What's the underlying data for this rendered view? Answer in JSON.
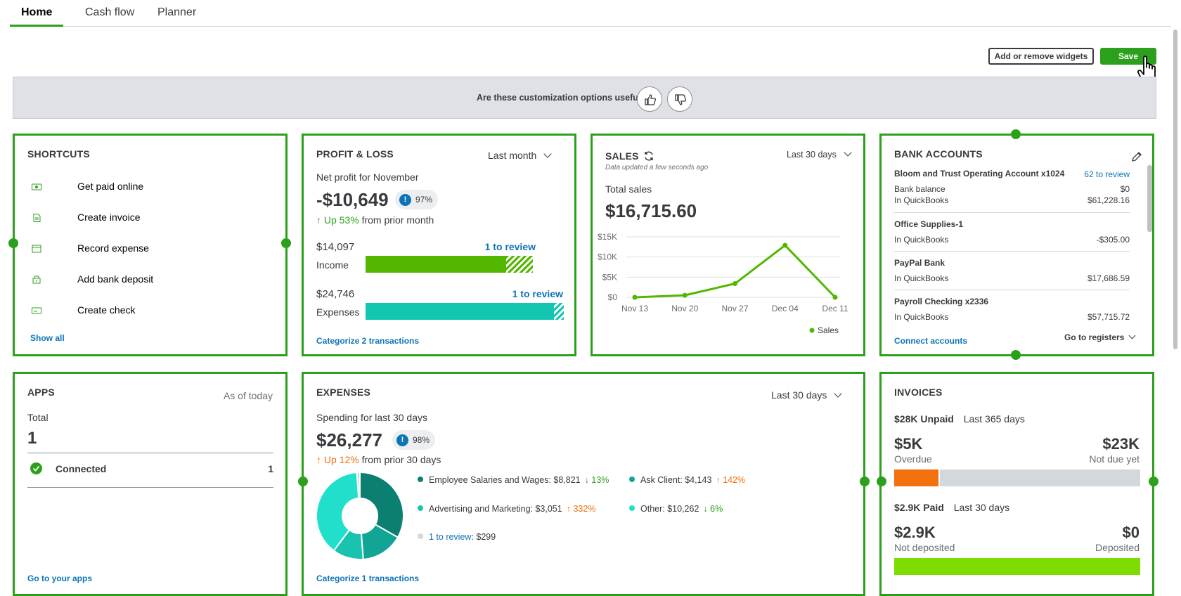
{
  "tabs": [
    {
      "label": "Home",
      "active": true
    },
    {
      "label": "Cash flow",
      "active": false
    },
    {
      "label": "Planner",
      "active": false
    }
  ],
  "actions": {
    "widgets_label": "Add or remove widgets",
    "save_label": "Save"
  },
  "feedback": {
    "question": "Are these customization options useful?",
    "thumbs_up_icon": "thumbs-up-icon",
    "thumbs_down_icon": "thumbs-down-icon"
  },
  "colors": {
    "accent": "#2ca01c",
    "link": "#0d74b7",
    "income": "#53b700",
    "expenses": "#13c6b2",
    "overdue": "#f2700d",
    "deposited": "#7fdc00"
  },
  "shortcuts": {
    "title": "SHORTCUTS",
    "items": [
      {
        "label": "Get paid online",
        "icon": "money-icon"
      },
      {
        "label": "Create invoice",
        "icon": "document-icon"
      },
      {
        "label": "Record expense",
        "icon": "receipt-icon"
      },
      {
        "label": "Add bank deposit",
        "icon": "bank-deposit-icon"
      },
      {
        "label": "Create check",
        "icon": "check-icon"
      }
    ],
    "show_all": "Show all"
  },
  "profit_loss": {
    "title": "PROFIT & LOSS",
    "period": "Last month",
    "subtitle": "Net profit for November",
    "net_profit": "-$10,649",
    "confidence": "97%",
    "change": "Up 53%",
    "change_suffix": "from prior month",
    "income": {
      "amount": "$14,097",
      "label": "Income",
      "review": "1 to review",
      "reviewed_fraction": 0.84
    },
    "expenses": {
      "amount": "$24,746",
      "label": "Expenses",
      "review": "1 to review",
      "reviewed_fraction": 0.95
    },
    "categorize": "Categorize 2 transactions"
  },
  "sales": {
    "title": "SALES",
    "updated": "Data updated a few seconds ago",
    "period": "Last 30 days",
    "total_label": "Total sales",
    "total": "$16,715.60",
    "legend": "Sales",
    "chart_data": {
      "type": "line",
      "categories": [
        "Nov 13",
        "Nov 20",
        "Nov 27",
        "Dec 04",
        "Dec 11"
      ],
      "x_positions": [
        0,
        1,
        2,
        3,
        4
      ],
      "series": [
        {
          "name": "Sales",
          "values": [
            0,
            500,
            3400,
            12900,
            0
          ]
        }
      ],
      "ylim": [
        0,
        15000
      ],
      "yticks": [
        0,
        5000,
        10000,
        15000
      ],
      "ytick_labels": [
        "$0",
        "$5K",
        "$10K",
        "$15K"
      ],
      "grid": true,
      "legend_placement": "bottom-right"
    }
  },
  "bank": {
    "title": "BANK ACCOUNTS",
    "accounts": [
      {
        "name": "Bloom and Trust Operating Account x1024",
        "review": "62 to review",
        "rows": [
          {
            "label": "Bank balance",
            "value": "$0"
          },
          {
            "label": "In QuickBooks",
            "value": "$61,228.16"
          }
        ]
      },
      {
        "name": "Office Supplies-1",
        "review": "",
        "rows": [
          {
            "label": "In QuickBooks",
            "value": "-$305.00"
          }
        ]
      },
      {
        "name": "PayPal Bank",
        "review": "",
        "rows": [
          {
            "label": "In QuickBooks",
            "value": "$17,686.59"
          }
        ]
      },
      {
        "name": "Payroll Checking x2336",
        "review": "",
        "rows": [
          {
            "label": "In QuickBooks",
            "value": "$57,715.72"
          }
        ]
      }
    ],
    "connect": "Connect accounts",
    "registers": "Go to registers"
  },
  "apps": {
    "title": "APPS",
    "period": "As of today",
    "total_label": "Total",
    "total": "1",
    "connected_label": "Connected",
    "connected_count": "1",
    "link": "Go to your apps"
  },
  "expenses": {
    "title": "EXPENSES",
    "period": "Last 30 days",
    "subtitle": "Spending for last 30 days",
    "total": "$26,277",
    "confidence": "98%",
    "change": "Up 12%",
    "change_suffix": "from prior 30 days",
    "items": [
      {
        "label": "Employee Salaries and Wages: $8,821",
        "change": "13%",
        "direction": "down",
        "color": "#0b8072"
      },
      {
        "label": "Ask Client: $4,143",
        "change": "142%",
        "direction": "up",
        "color": "#12a494"
      },
      {
        "label": "Advertising and Marketing: $3,051",
        "change": "332%",
        "direction": "up",
        "color": "#1ac2b0"
      },
      {
        "label": "Other: $10,262",
        "change": "6%",
        "direction": "down",
        "color": "#21e0cb"
      }
    ],
    "review_link": "1 to review",
    "review_amount": ": $299",
    "categorize": "Categorize 1 transactions",
    "chart_data": {
      "type": "pie",
      "categories": [
        "Employee Salaries and Wages",
        "Ask Client",
        "Advertising and Marketing",
        "Other",
        "1 to review"
      ],
      "values": [
        8821,
        4143,
        3051,
        10262,
        299
      ]
    }
  },
  "invoices": {
    "title": "INVOICES",
    "unpaid": "$28K Unpaid",
    "unpaid_period": "Last 365 days",
    "overdue_amount": "$5K",
    "overdue_label": "Overdue",
    "notdue_amount": "$23K",
    "notdue_label": "Not due yet",
    "overdue_fraction": 0.18,
    "paid": "$2.9K Paid",
    "paid_period": "Last 30 days",
    "notdeposited_amount": "$2.9K",
    "notdeposited_label": "Not deposited",
    "deposited_amount": "$0",
    "deposited_label": "Deposited"
  }
}
